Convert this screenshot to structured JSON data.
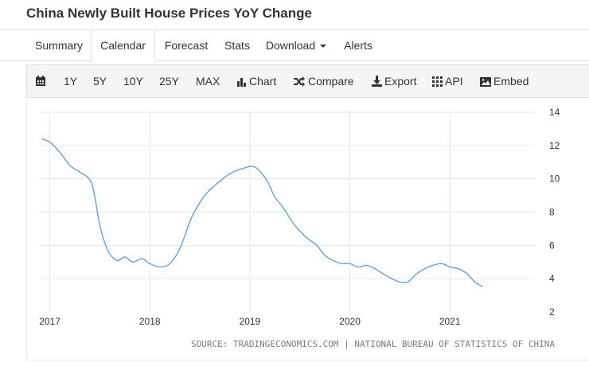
{
  "page": {
    "title": "China Newly Built House Prices YoY Change"
  },
  "tabs": [
    {
      "label": "Summary"
    },
    {
      "label": "Calendar",
      "active": true
    },
    {
      "label": "Forecast"
    },
    {
      "label": "Stats"
    },
    {
      "label": "Download"
    },
    {
      "label": "Alerts"
    }
  ],
  "toolbar": {
    "calendar_icon": "calendar-icon",
    "ranges": [
      "1Y",
      "5Y",
      "10Y",
      "25Y",
      "MAX"
    ],
    "chart_label": "Chart",
    "compare_label": "Compare",
    "export_label": "Export",
    "api_label": "API",
    "embed_label": "Embed"
  },
  "source": "SOURCE: TRADINGECONOMICS.COM | NATIONAL BUREAU OF STATISTICS OF CHINA",
  "colors": {
    "line": "#5b9bd5",
    "grid": "#e6e6e6"
  },
  "chart_data": {
    "type": "line",
    "title": "",
    "xlabel": "",
    "ylabel": "",
    "x_ticks": [
      "2017",
      "2018",
      "2019",
      "2020",
      "2021"
    ],
    "y_ticks": [
      2,
      4,
      6,
      8,
      10,
      12,
      14
    ],
    "ylim": [
      2,
      14
    ],
    "xlim": [
      2016.9,
      2021.85
    ],
    "grid": true,
    "y_axis_side": "right",
    "series": [
      {
        "values": [
          [
            2016.92,
            12.4
          ],
          [
            2017.0,
            12.2
          ],
          [
            2017.1,
            11.6
          ],
          [
            2017.2,
            10.8
          ],
          [
            2017.3,
            10.4
          ],
          [
            2017.42,
            9.7
          ],
          [
            2017.5,
            7.2
          ],
          [
            2017.58,
            5.7
          ],
          [
            2017.67,
            5.1
          ],
          [
            2017.75,
            5.3
          ],
          [
            2017.83,
            5.0
          ],
          [
            2017.92,
            5.2
          ],
          [
            2018.0,
            4.9
          ],
          [
            2018.1,
            4.7
          ],
          [
            2018.2,
            4.9
          ],
          [
            2018.3,
            5.8
          ],
          [
            2018.42,
            7.7
          ],
          [
            2018.55,
            9.0
          ],
          [
            2018.67,
            9.7
          ],
          [
            2018.8,
            10.3
          ],
          [
            2018.92,
            10.6
          ],
          [
            2019.05,
            10.7
          ],
          [
            2019.17,
            9.9
          ],
          [
            2019.25,
            8.9
          ],
          [
            2019.33,
            8.3
          ],
          [
            2019.45,
            7.2
          ],
          [
            2019.58,
            6.4
          ],
          [
            2019.67,
            6.0
          ],
          [
            2019.75,
            5.4
          ],
          [
            2019.83,
            5.1
          ],
          [
            2019.92,
            4.9
          ],
          [
            2020.0,
            4.9
          ],
          [
            2020.08,
            4.7
          ],
          [
            2020.17,
            4.8
          ],
          [
            2020.25,
            4.6
          ],
          [
            2020.33,
            4.3
          ],
          [
            2020.42,
            4.0
          ],
          [
            2020.5,
            3.8
          ],
          [
            2020.58,
            3.8
          ],
          [
            2020.67,
            4.3
          ],
          [
            2020.75,
            4.6
          ],
          [
            2020.83,
            4.8
          ],
          [
            2020.92,
            4.9
          ],
          [
            2021.0,
            4.7
          ],
          [
            2021.08,
            4.6
          ],
          [
            2021.17,
            4.3
          ],
          [
            2021.25,
            3.8
          ],
          [
            2021.33,
            3.5
          ]
        ]
      }
    ]
  }
}
